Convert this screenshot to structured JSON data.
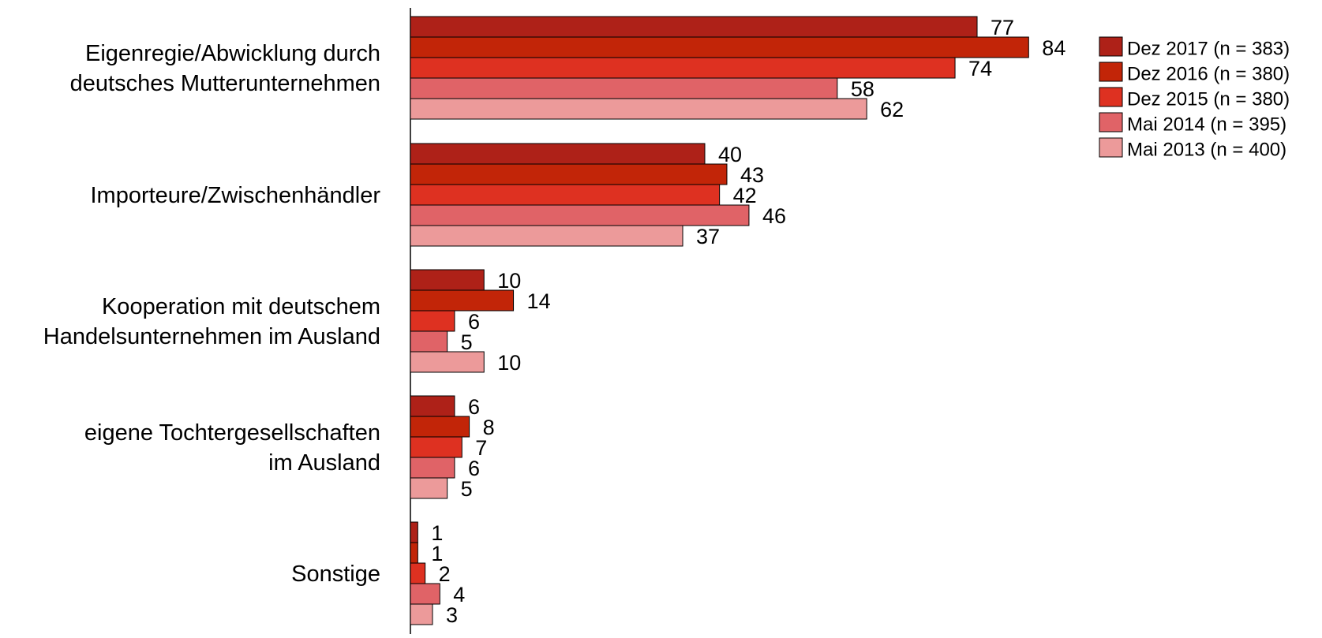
{
  "chart_data": {
    "type": "bar",
    "orientation": "horizontal",
    "categories": [
      [
        "Eigenregie/Abwicklung durch",
        "deutsches Mutterunternehmen"
      ],
      [
        "Importeure/Zwischenhändler"
      ],
      [
        "Kooperation mit deutschem",
        "Handelsunternehmen im Ausland"
      ],
      [
        "eigene Tochtergesellschaften",
        "im Ausland"
      ],
      [
        "Sonstige"
      ]
    ],
    "series": [
      {
        "name": "Dez 2017 (n = 383)",
        "color": "#AE2118",
        "values": [
          77,
          40,
          10,
          6,
          1
        ]
      },
      {
        "name": "Dez 2016 (n = 380)",
        "color": "#C22508",
        "values": [
          84,
          43,
          14,
          8,
          1
        ]
      },
      {
        "name": "Dez 2015 (n = 380)",
        "color": "#DE3121",
        "values": [
          74,
          42,
          6,
          7,
          2
        ]
      },
      {
        "name": "Mai 2014 (n = 395)",
        "color": "#E06367",
        "values": [
          58,
          46,
          5,
          6,
          4
        ]
      },
      {
        "name": "Mai 2013 (n = 400)",
        "color": "#EC9A9A",
        "values": [
          62,
          37,
          10,
          5,
          3
        ]
      }
    ],
    "xlim": [
      0,
      100
    ],
    "data_labels": true,
    "grid": false,
    "legend": "top-right"
  }
}
